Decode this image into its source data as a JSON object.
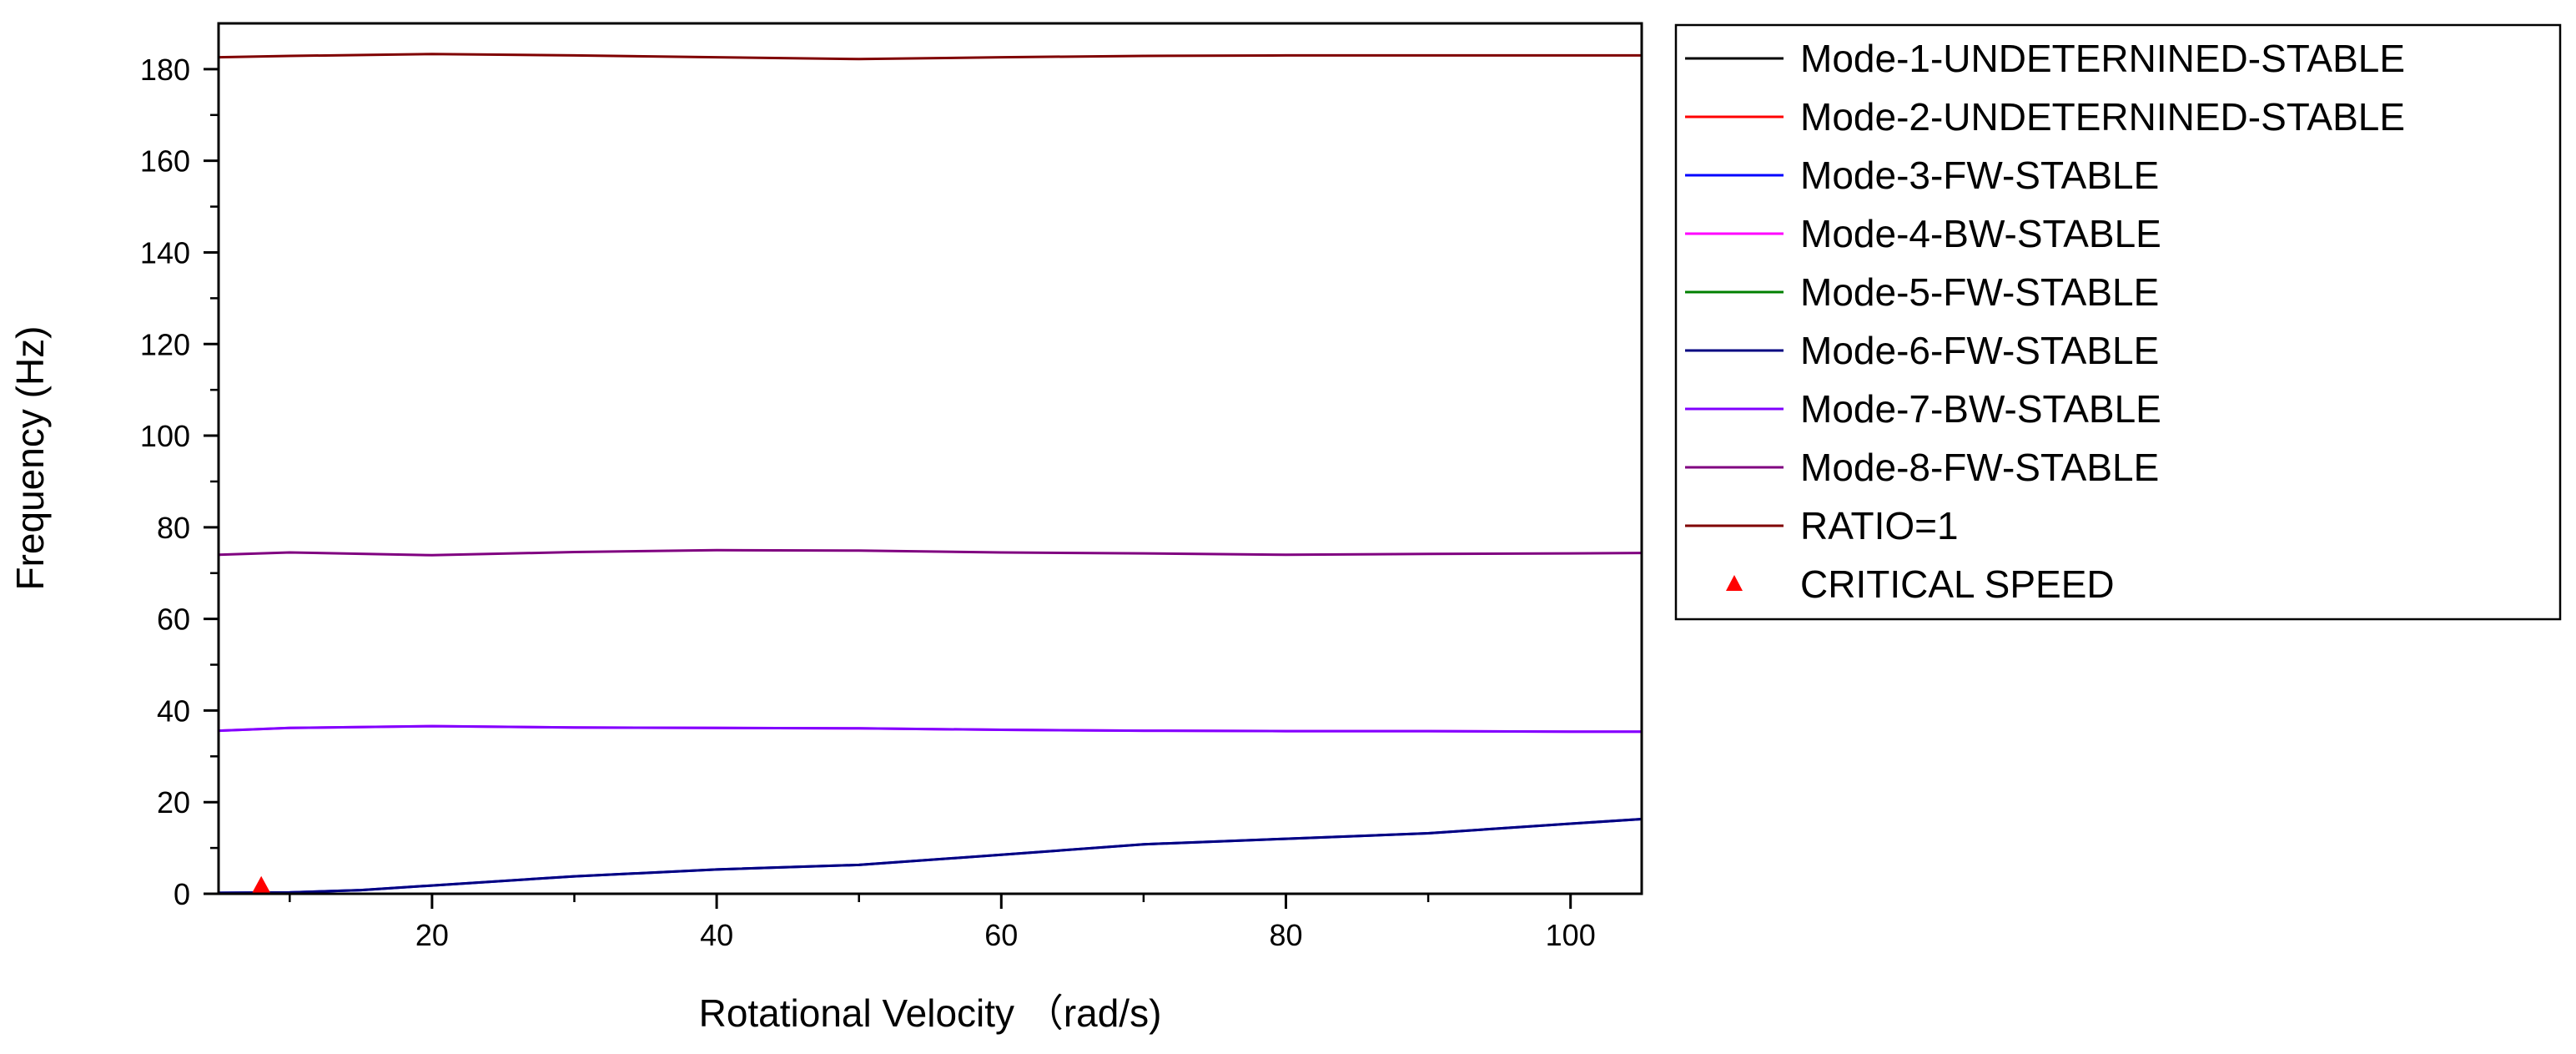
{
  "chart_data": {
    "type": "line",
    "title": "",
    "xlabel": "Rotational Velocity （rad/s)",
    "ylabel": "Frequency (Hz)",
    "xlim": [
      5,
      105
    ],
    "ylim": [
      0,
      190
    ],
    "x_ticks": [
      20,
      40,
      60,
      80,
      100
    ],
    "y_ticks": [
      0,
      20,
      40,
      60,
      80,
      100,
      120,
      140,
      160,
      180
    ],
    "grid": false,
    "legend_position": "outside-right",
    "series": [
      {
        "name": "Mode-1-UNDETERNINED-STABLE",
        "color": "#000000",
        "x": [
          5,
          105
        ],
        "y": [
          0,
          0
        ]
      },
      {
        "name": "Mode-2-UNDETERNINED-STABLE",
        "color": "#ff0000",
        "x": [
          5,
          105
        ],
        "y": [
          0,
          0
        ]
      },
      {
        "name": "Mode-3-FW-STABLE",
        "color": "#0000ff",
        "x": [
          5,
          10,
          15,
          20,
          30,
          40,
          50,
          60,
          70,
          80,
          90,
          100,
          105
        ],
        "y": [
          0.2,
          0.3,
          0.8,
          1.8,
          3.8,
          5.3,
          6.3,
          8.5,
          10.8,
          12,
          13.2,
          15.3,
          16.3
        ]
      },
      {
        "name": "Mode-4-BW-STABLE",
        "color": "#ff00ff",
        "x": [
          5,
          10,
          20,
          30,
          40,
          50,
          60,
          70,
          80,
          90,
          100,
          105
        ],
        "y": [
          35.6,
          36.2,
          36.6,
          36.3,
          36.2,
          36.1,
          35.8,
          35.6,
          35.5,
          35.5,
          35.4,
          35.4
        ]
      },
      {
        "name": "Mode-5-FW-STABLE",
        "color": "#008000",
        "x": [
          5,
          105
        ],
        "y": [
          0,
          0
        ]
      },
      {
        "name": "Mode-6-FW-STABLE",
        "color": "#000080",
        "x": [
          5,
          10,
          15,
          20,
          30,
          40,
          50,
          60,
          70,
          80,
          90,
          100,
          105
        ],
        "y": [
          0.2,
          0.3,
          0.8,
          1.8,
          3.8,
          5.3,
          6.3,
          8.5,
          10.8,
          12,
          13.2,
          15.3,
          16.3
        ]
      },
      {
        "name": "Mode-7-BW-STABLE",
        "color": "#8000ff",
        "x": [
          5,
          10,
          20,
          30,
          40,
          50,
          60,
          70,
          80,
          90,
          100,
          105
        ],
        "y": [
          35.6,
          36.2,
          36.6,
          36.3,
          36.2,
          36.1,
          35.8,
          35.6,
          35.5,
          35.5,
          35.4,
          35.4
        ]
      },
      {
        "name": "Mode-8-FW-STABLE",
        "color": "#800080",
        "x": [
          5,
          10,
          20,
          30,
          40,
          50,
          60,
          70,
          80,
          90,
          100,
          105
        ],
        "y": [
          74.0,
          74.5,
          73.9,
          74.6,
          75.0,
          74.9,
          74.5,
          74.3,
          74.0,
          74.2,
          74.3,
          74.4
        ]
      },
      {
        "name": "RATIO=1",
        "color": "#800000",
        "x": [
          5,
          10,
          20,
          30,
          40,
          50,
          60,
          70,
          80,
          90,
          100,
          105
        ],
        "y": [
          182.6,
          182.9,
          183.3,
          183.0,
          182.6,
          182.2,
          182.6,
          182.9,
          183.0,
          183.0,
          183.0,
          183.0
        ]
      }
    ],
    "critical_speed": {
      "name": "CRITICAL SPEED",
      "color": "#ff0000",
      "marker": "triangle",
      "points": [
        {
          "x": 8,
          "y": 1.5
        }
      ]
    }
  }
}
